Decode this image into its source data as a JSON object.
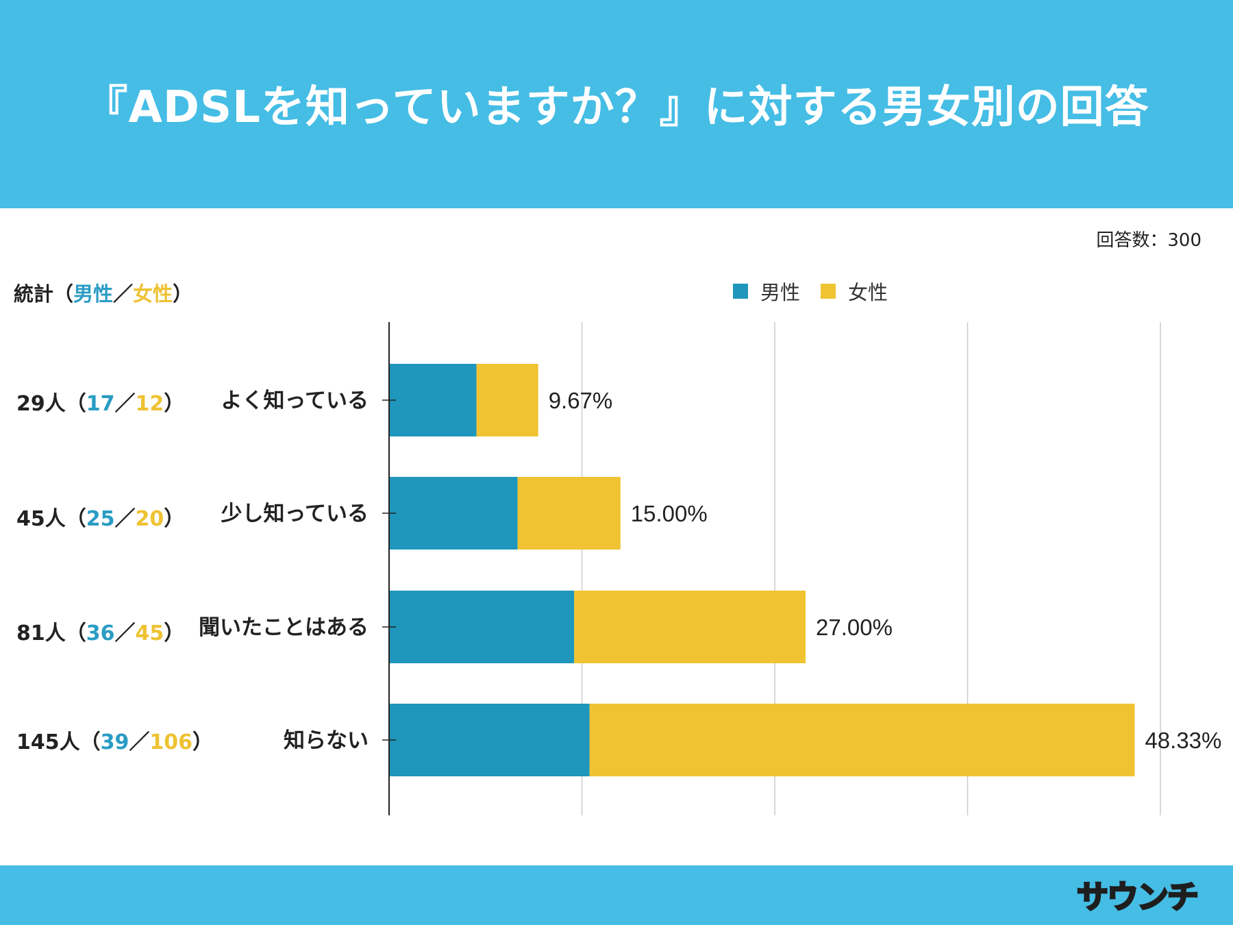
{
  "header": {
    "title": "『ADSLを知っていますか？』に対する男女別の回答"
  },
  "response_count": "回答数：300",
  "stats_heading": {
    "prefix": "統計（",
    "male": "男性",
    "sep": "／",
    "female": "女性",
    "suffix": "）"
  },
  "colors": {
    "male": "#1f96bb",
    "female": "#f0c332",
    "header": "#45bde5"
  },
  "stats": [
    {
      "total": "29人（",
      "male": "17",
      "sep": "／",
      "female": "12",
      "close": "）"
    },
    {
      "total": "45人（",
      "male": "25",
      "sep": "／",
      "female": "20",
      "close": "）"
    },
    {
      "total": "81人（",
      "male": "36",
      "sep": "／",
      "female": "45",
      "close": "）"
    },
    {
      "total": "145人（",
      "male": "39",
      "sep": "／",
      "female": "106",
      "close": "）"
    }
  ],
  "chart_data": {
    "type": "bar",
    "orientation": "horizontal",
    "stacked": true,
    "categories": [
      "よく知っている",
      "少し知っている",
      "聞いたことはある",
      "知らない"
    ],
    "series": [
      {
        "name": "男性",
        "values": [
          17,
          25,
          36,
          39
        ]
      },
      {
        "name": "女性",
        "values": [
          12,
          20,
          45,
          106
        ]
      }
    ],
    "data_labels": [
      "9.67%",
      "15.00%",
      "27.00%",
      "48.33%"
    ],
    "xlim": [
      0,
      150
    ],
    "gridlines": [
      0,
      37.5,
      75,
      112.5,
      150
    ],
    "legend": "top-center",
    "grid": true
  },
  "logo": {
    "text": "サウンチ"
  }
}
